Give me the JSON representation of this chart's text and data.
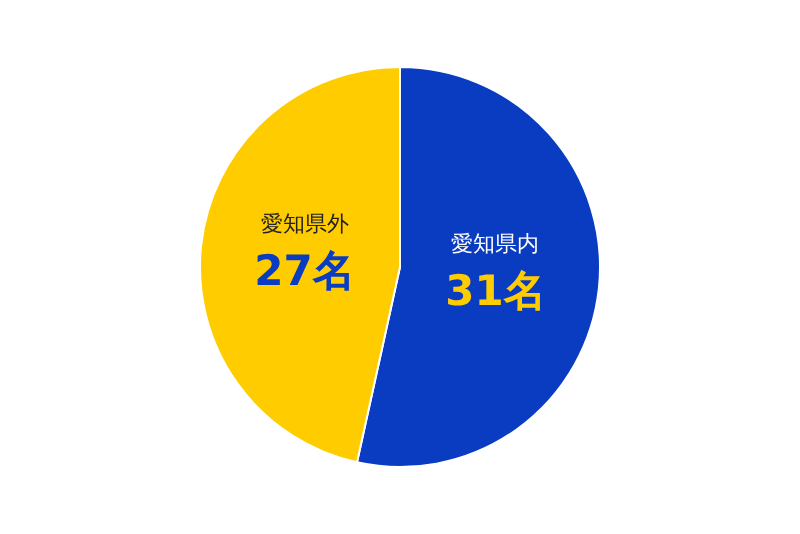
{
  "chart_data": {
    "type": "pie",
    "categories": [
      "愛知県内",
      "愛知県外"
    ],
    "values": [
      31,
      27
    ],
    "colors": [
      "#0a3cc2",
      "#ffcc00"
    ],
    "value_labels": [
      "31名",
      "27名"
    ]
  }
}
